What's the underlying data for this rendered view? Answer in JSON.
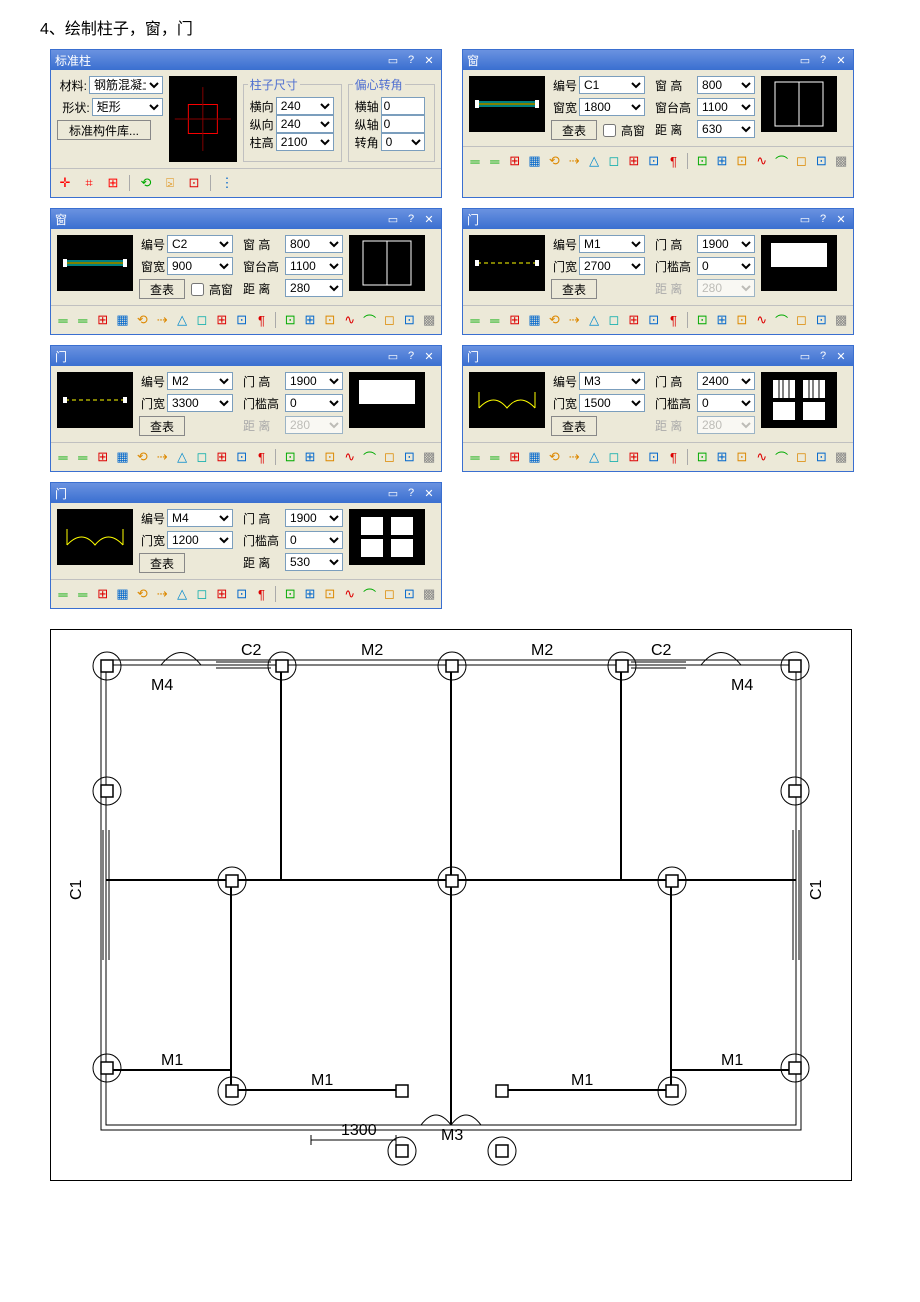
{
  "page_title": "4、绘制柱子，窗，门",
  "titlebar_icons": {
    "pin": "▭",
    "help": "?",
    "close": "✕"
  },
  "column_panel": {
    "title": "标准柱",
    "material_label": "材料:",
    "material_value": "钢筋混凝土",
    "shape_label": "形状:",
    "shape_value": "矩形",
    "lib_button": "标准构件库...",
    "size_group": "柱子尺寸",
    "h_label": "横向",
    "h_value": "240",
    "v_label": "纵向",
    "v_value": "240",
    "ht_label": "柱高",
    "ht_value": "2100",
    "offset_group": "偏心转角",
    "ox_label": "横轴",
    "ox_value": "0",
    "oy_label": "纵轴",
    "oy_value": "0",
    "rot_label": "转角",
    "rot_value": "0"
  },
  "window_c1": {
    "title": "窗",
    "id_label": "编号",
    "id_value": "C1",
    "width_label": "窗宽",
    "width_value": "1800",
    "check_button": "查表",
    "high_window": "高窗",
    "wh_label": "窗 高",
    "wh_value": "800",
    "sill_label": "窗台高",
    "sill_value": "1100",
    "dist_label": "距 离",
    "dist_value": "630"
  },
  "window_c2": {
    "title": "窗",
    "id_label": "编号",
    "id_value": "C2",
    "width_label": "窗宽",
    "width_value": "900",
    "check_button": "查表",
    "high_window": "高窗",
    "wh_label": "窗 高",
    "wh_value": "800",
    "sill_label": "窗台高",
    "sill_value": "1100",
    "dist_label": "距 离",
    "dist_value": "280"
  },
  "door_m1": {
    "title": "门",
    "id_label": "编号",
    "id_value": "M1",
    "width_label": "门宽",
    "width_value": "2700",
    "check_button": "查表",
    "dh_label": "门 高",
    "dh_value": "1900",
    "thr_label": "门槛高",
    "thr_value": "0",
    "dist_label": "距 离",
    "dist_value": "280"
  },
  "door_m2": {
    "title": "门",
    "id_label": "编号",
    "id_value": "M2",
    "width_label": "门宽",
    "width_value": "3300",
    "check_button": "查表",
    "dh_label": "门 高",
    "dh_value": "1900",
    "thr_label": "门槛高",
    "thr_value": "0",
    "dist_label": "距 离",
    "dist_value": "280"
  },
  "door_m3": {
    "title": "门",
    "id_label": "编号",
    "id_value": "M3",
    "width_label": "门宽",
    "width_value": "1500",
    "check_button": "查表",
    "dh_label": "门 高",
    "dh_value": "2400",
    "thr_label": "门槛高",
    "thr_value": "0",
    "dist_label": "距 离",
    "dist_value": "280"
  },
  "door_m4": {
    "title": "门",
    "id_label": "编号",
    "id_value": "M4",
    "width_label": "门宽",
    "width_value": "1200",
    "check_button": "查表",
    "dh_label": "门 高",
    "dh_value": "1900",
    "thr_label": "门槛高",
    "thr_value": "0",
    "dist_label": "距 离",
    "dist_value": "530"
  },
  "toolbar_column": [
    "✛",
    "⌗",
    "⊞",
    "⟲",
    "⍄",
    "⊡",
    "⋮"
  ],
  "toolbar_window": [
    "═",
    "═",
    "⊞",
    "▦",
    "⟲",
    "⇢",
    "△",
    "◻",
    "⊞",
    "⊡",
    "¶",
    "|",
    "⊡",
    "⊞",
    "⊡",
    "∿",
    "⌒",
    "◻",
    "⊡",
    "▩"
  ],
  "plan": {
    "labels": {
      "C1": "C1",
      "C2": "C2",
      "M1": "M1",
      "M2": "M2",
      "M3": "M3",
      "M4": "M4",
      "dim": "1300"
    },
    "colors": {
      "wall": "#000",
      "axis": "#888",
      "col": "#000"
    }
  }
}
